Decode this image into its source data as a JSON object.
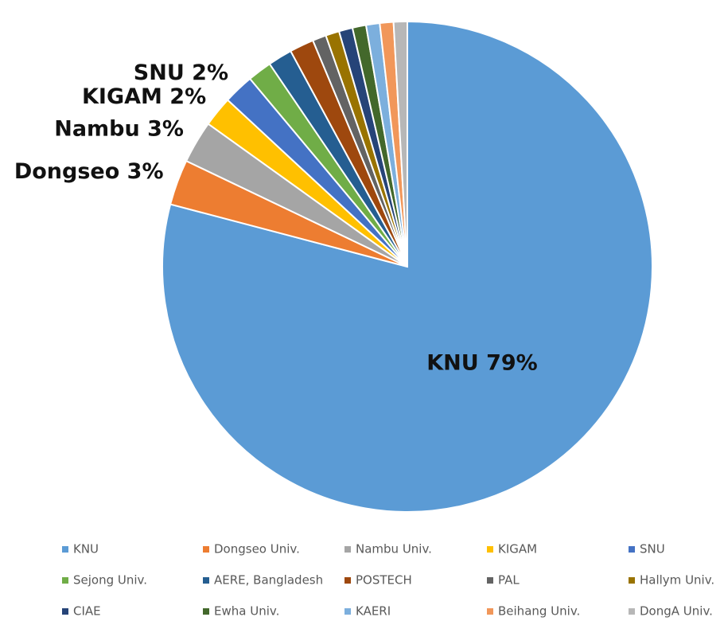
{
  "chart_data": {
    "type": "pie",
    "categories": [
      "KNU",
      "Dongseo Univ.",
      "Nambu Univ.",
      "KIGAM",
      "SNU",
      "Sejong Univ.",
      "AERE, Bangladesh",
      "POSTECH",
      "PAL",
      "Hallym Univ.",
      "CIAE",
      "Ewha Univ.",
      "KAERI",
      "Beihang Univ.",
      "DongA Univ."
    ],
    "values": [
      79.1,
      3.0,
      2.8,
      2.0,
      2.0,
      1.6,
      1.6,
      1.6,
      0.9,
      0.9,
      0.9,
      0.9,
      0.9,
      0.9,
      0.9
    ],
    "value_labels": [
      "KNU 79%",
      "Dongseo 3%",
      "Nambu 3%",
      "KIGAM 2%",
      "SNU 2%",
      null,
      null,
      null,
      null,
      null,
      null,
      null,
      null,
      null,
      null
    ],
    "colors": [
      "#5b9bd5",
      "#ed7d31",
      "#a5a5a5",
      "#ffc000",
      "#4472c4",
      "#70ad47",
      "#255e91",
      "#9e480e",
      "#636363",
      "#997300",
      "#264478",
      "#43682b",
      "#7cafdd",
      "#f1975a",
      "#b7b7b7"
    ],
    "legend": "bottom"
  }
}
